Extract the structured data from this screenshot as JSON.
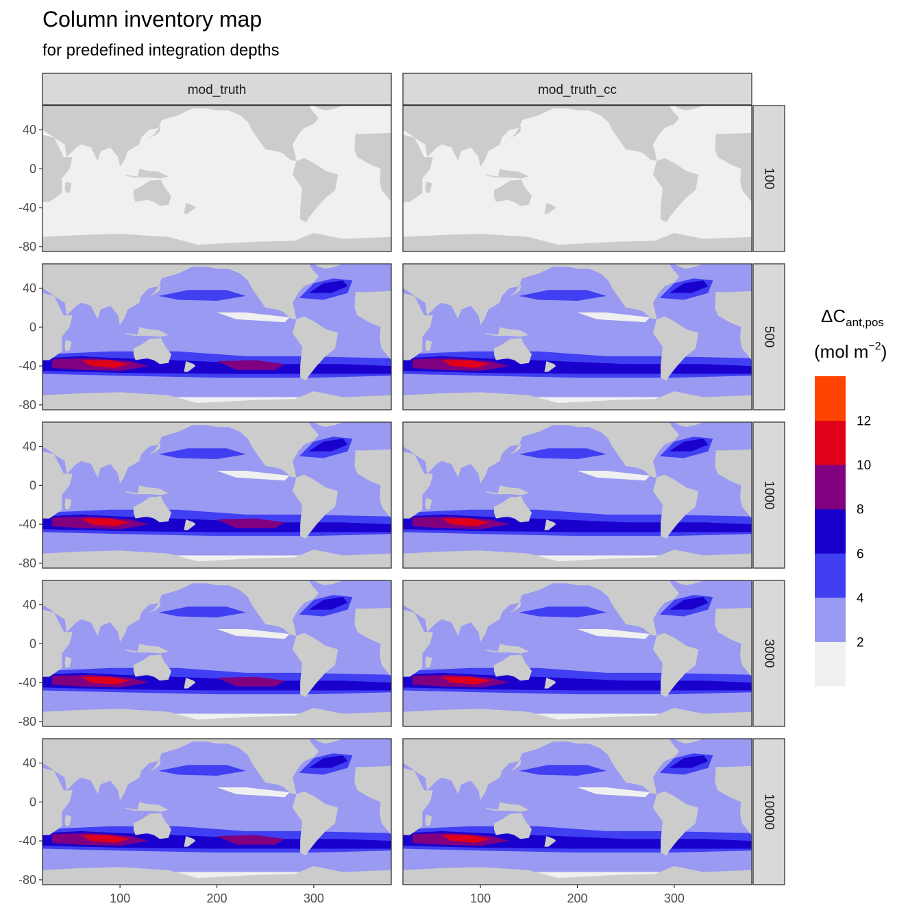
{
  "title": "Column inventory map",
  "subtitle": "for predefined integration depths",
  "chart_data": {
    "type": "heatmap",
    "title": "Column inventory map",
    "subtitle": "for predefined integration depths",
    "facet_columns": [
      "mod_truth",
      "mod_truth_cc"
    ],
    "facet_rows": [
      "100",
      "500",
      "1000",
      "3000",
      "10000"
    ],
    "x_ticks": [
      100,
      200,
      300
    ],
    "y_ticks": [
      40,
      0,
      -40,
      -80
    ],
    "xlim": [
      20,
      380
    ],
    "ylim": [
      -85,
      65
    ],
    "legend": {
      "title_main": "ΔC",
      "title_sub": "ant,pos",
      "unit_left": "(mol m",
      "unit_sup": "−2",
      "unit_right": ")",
      "breaks": [
        2,
        4,
        6,
        8,
        10,
        12
      ],
      "bins": [
        {
          "range": "<2",
          "color": "#f0f0f0"
        },
        {
          "range": "2-4",
          "color": "#9a9af2"
        },
        {
          "range": "4-6",
          "color": "#4040f2"
        },
        {
          "range": "6-8",
          "color": "#1a00cc"
        },
        {
          "range": "8-10",
          "color": "#800080"
        },
        {
          "range": "10-12",
          "color": "#e0001a"
        },
        {
          "range": ">12",
          "color": "#ff4400"
        }
      ]
    },
    "land_color": "#cccccc",
    "panel_bins": {
      "mod_truth": {
        "100": 0,
        "500": 3,
        "1000": 5,
        "3000": 5,
        "10000": 5
      },
      "mod_truth_cc": {
        "100": 0,
        "500": 3,
        "1000": 5,
        "3000": 5,
        "10000": 5
      }
    }
  }
}
